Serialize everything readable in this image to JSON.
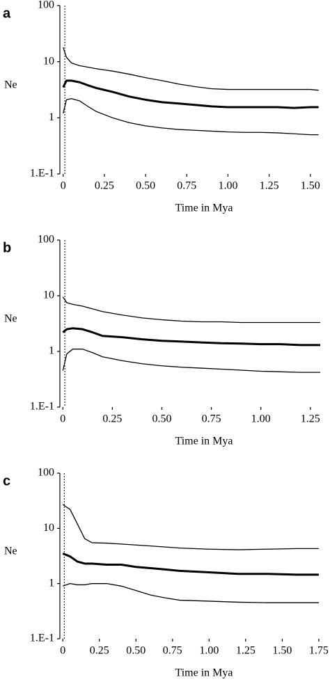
{
  "chart_data": [
    {
      "type": "line",
      "panel_label": "a",
      "x_label": "Time in Mya",
      "y_label": "Ne",
      "log_y": true,
      "ylim": [
        0.1,
        100
      ],
      "yticks": [
        {
          "value": 0.1,
          "label": "1.E-1"
        },
        1,
        10,
        100
      ],
      "xlim": [
        -0.02,
        1.56
      ],
      "xticks": [
        0,
        0.25,
        {
          "value": 0.5,
          "label": "0.50"
        },
        0.75,
        {
          "value": 1,
          "label": "1.00"
        },
        1.25,
        {
          "value": 1.5,
          "label": "1.50"
        }
      ],
      "reference_x": 0.01,
      "x": [
        0,
        0.02,
        0.05,
        0.1,
        0.15,
        0.2,
        0.3,
        0.4,
        0.5,
        0.6,
        0.7,
        0.8,
        0.9,
        1.0,
        1.1,
        1.2,
        1.3,
        1.4,
        1.5,
        1.55
      ],
      "series": [
        {
          "color": "#000000",
          "bold": false,
          "values": [
            18,
            12,
            9.5,
            8.5,
            8,
            7.5,
            6.8,
            6,
            5.2,
            4.6,
            4,
            3.6,
            3.3,
            3.2,
            3.2,
            3.2,
            3.2,
            3.2,
            3.2,
            3.1
          ]
        },
        {
          "color": "#000000",
          "bold": true,
          "values": [
            3.5,
            4.6,
            4.6,
            4.3,
            3.8,
            3.4,
            2.9,
            2.4,
            2.1,
            1.9,
            1.8,
            1.7,
            1.6,
            1.55,
            1.55,
            1.55,
            1.55,
            1.5,
            1.55,
            1.55
          ]
        },
        {
          "color": "#000000",
          "bold": false,
          "values": [
            1.2,
            2.1,
            2.2,
            2.0,
            1.6,
            1.3,
            1.0,
            0.82,
            0.72,
            0.66,
            0.62,
            0.6,
            0.58,
            0.56,
            0.55,
            0.55,
            0.54,
            0.52,
            0.5,
            0.5
          ]
        }
      ]
    },
    {
      "type": "line",
      "panel_label": "b",
      "x_label": "Time in Mya",
      "y_label": "Ne",
      "log_y": true,
      "ylim": [
        0.1,
        100
      ],
      "yticks": [
        {
          "value": 0.1,
          "label": "1.E-1"
        },
        1,
        10,
        100
      ],
      "xlim": [
        -0.015,
        1.3
      ],
      "xticks": [
        0,
        0.25,
        {
          "value": 0.5,
          "label": "0.50"
        },
        0.75,
        {
          "value": 1,
          "label": "1.00"
        },
        1.25
      ],
      "reference_x": 0.01,
      "x": [
        0,
        0.02,
        0.05,
        0.1,
        0.15,
        0.2,
        0.3,
        0.4,
        0.5,
        0.6,
        0.7,
        0.8,
        0.9,
        1.0,
        1.1,
        1.2,
        1.3
      ],
      "series": [
        {
          "color": "#000000",
          "bold": false,
          "values": [
            9.5,
            7.5,
            7,
            6.5,
            5.8,
            5.2,
            4.5,
            4.0,
            3.7,
            3.5,
            3.4,
            3.4,
            3.3,
            3.3,
            3.3,
            3.3,
            3.3
          ]
        },
        {
          "color": "#000000",
          "bold": true,
          "values": [
            2.2,
            2.5,
            2.6,
            2.5,
            2.2,
            1.9,
            1.8,
            1.65,
            1.55,
            1.5,
            1.45,
            1.4,
            1.38,
            1.35,
            1.35,
            1.3,
            1.3
          ]
        },
        {
          "color": "#000000",
          "bold": false,
          "values": [
            0.45,
            0.9,
            1.1,
            1.1,
            0.95,
            0.8,
            0.68,
            0.6,
            0.55,
            0.52,
            0.5,
            0.48,
            0.46,
            0.44,
            0.43,
            0.42,
            0.42
          ]
        }
      ]
    },
    {
      "type": "line",
      "panel_label": "c",
      "x_label": "Time in Mya",
      "y_label": "Ne",
      "log_y": true,
      "ylim": [
        0.1,
        100
      ],
      "yticks": [
        {
          "value": 0.1,
          "label": "1.E-1"
        },
        1,
        10,
        100
      ],
      "xlim": [
        -0.02,
        1.76
      ],
      "xticks": [
        0,
        0.25,
        {
          "value": 0.5,
          "label": "0.50"
        },
        0.75,
        {
          "value": 1,
          "label": "1.00"
        },
        1.25,
        {
          "value": 1.5,
          "label": "1.50"
        },
        1.75
      ],
      "reference_x": 0.01,
      "x": [
        0,
        0.05,
        0.1,
        0.15,
        0.2,
        0.3,
        0.4,
        0.5,
        0.6,
        0.7,
        0.8,
        1.0,
        1.2,
        1.4,
        1.6,
        1.75
      ],
      "series": [
        {
          "color": "#000000",
          "bold": false,
          "values": [
            27,
            22,
            12,
            6.5,
            5.5,
            5.4,
            5.2,
            5.0,
            4.8,
            4.6,
            4.4,
            4.2,
            4.1,
            4.2,
            4.3,
            4.3
          ]
        },
        {
          "color": "#000000",
          "bold": true,
          "values": [
            3.5,
            3.1,
            2.5,
            2.3,
            2.3,
            2.2,
            2.2,
            2.0,
            1.9,
            1.8,
            1.7,
            1.6,
            1.5,
            1.5,
            1.45,
            1.45
          ]
        },
        {
          "color": "#000000",
          "bold": false,
          "values": [
            0.9,
            1.0,
            0.95,
            0.95,
            1.0,
            1.0,
            0.9,
            0.75,
            0.62,
            0.55,
            0.5,
            0.48,
            0.46,
            0.45,
            0.45,
            0.45
          ]
        }
      ]
    }
  ]
}
